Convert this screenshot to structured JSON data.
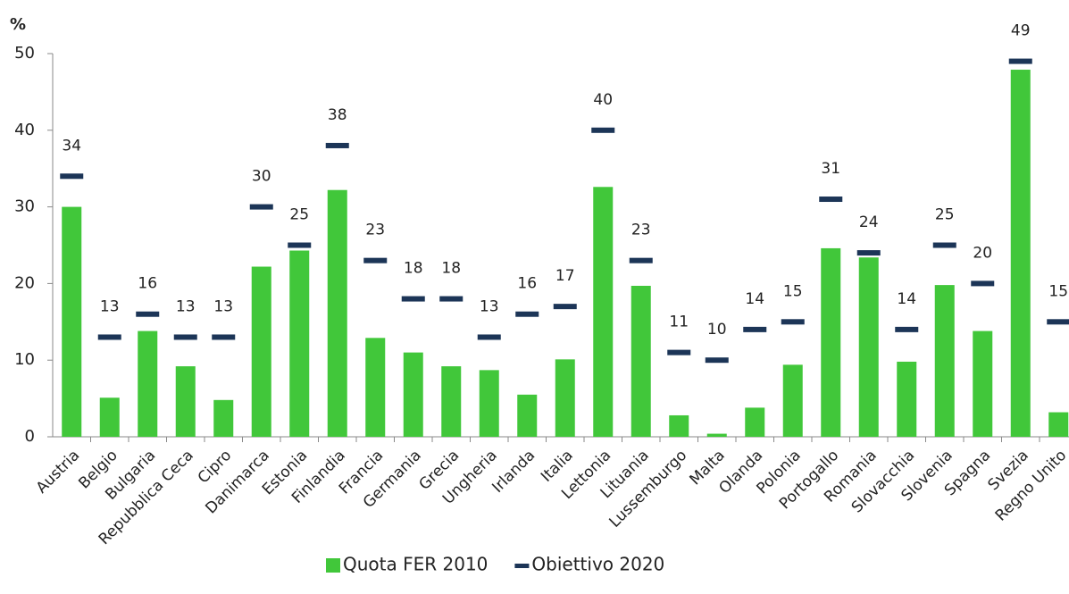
{
  "chart_data": {
    "type": "bar",
    "y_label": "%",
    "categories": [
      "Austria",
      "Belgio",
      "Bulgaria",
      "Repubblica Ceca",
      "Cipro",
      "Danimarca",
      "Estonia",
      "Finlandia",
      "Francia",
      "Germania",
      "Grecia",
      "Ungheria",
      "Irlanda",
      "Italia",
      "Lettonia",
      "Lituania",
      "Lussemburgo",
      "Malta",
      "Olanda",
      "Polonia",
      "Portogallo",
      "Romania",
      "Slovacchia",
      "Slovenia",
      "Spagna",
      "Svezia",
      "Regno Unito"
    ],
    "series": [
      {
        "name": "Quota FER 2010",
        "type": "bar",
        "color": "#41c73a",
        "values": [
          30,
          5.1,
          13.8,
          9.2,
          4.8,
          22.2,
          24.3,
          32.2,
          12.9,
          11,
          9.2,
          8.7,
          5.5,
          10.1,
          32.6,
          19.7,
          2.8,
          0.4,
          3.8,
          9.4,
          24.6,
          23.4,
          9.8,
          19.8,
          13.8,
          47.9,
          3.2
        ]
      },
      {
        "name": "Obiettivo 2020",
        "type": "dash",
        "color": "#1c3557",
        "data_labels": true,
        "values": [
          34,
          13,
          16,
          13,
          13,
          30,
          25,
          38,
          23,
          18,
          18,
          13,
          16,
          17,
          40,
          23,
          11,
          10,
          14,
          15,
          31,
          24,
          14,
          25,
          20,
          49,
          15
        ]
      }
    ],
    "ylim": [
      0,
      50
    ],
    "yticks": [
      0,
      10,
      20,
      30,
      40,
      50
    ],
    "legend": "bottom"
  }
}
